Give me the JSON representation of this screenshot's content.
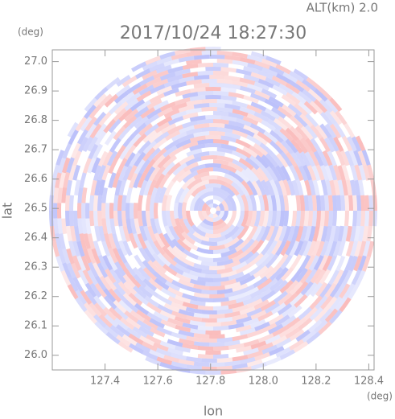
{
  "chart_data": {
    "type": "radar-ppi",
    "title": "2017/10/24 18:27:30",
    "subtitle": "ALT(km) 2.0",
    "x_label": "lon",
    "y_label": "lat",
    "x_unit": "(deg)",
    "y_unit": "(deg)",
    "xlim": [
      127.2,
      128.42
    ],
    "ylim": [
      25.95,
      27.04
    ],
    "xticks": [
      127.4,
      127.6,
      127.8,
      {
        "value": 128,
        "label": "128.0"
      },
      128.2,
      128.4
    ],
    "yticks": [
      {
        "value": 26,
        "label": "26.0"
      },
      26.1,
      26.2,
      26.3,
      26.4,
      26.5,
      26.6,
      26.7,
      26.8,
      26.9,
      {
        "value": 27,
        "label": "27.0"
      }
    ]
  }
}
